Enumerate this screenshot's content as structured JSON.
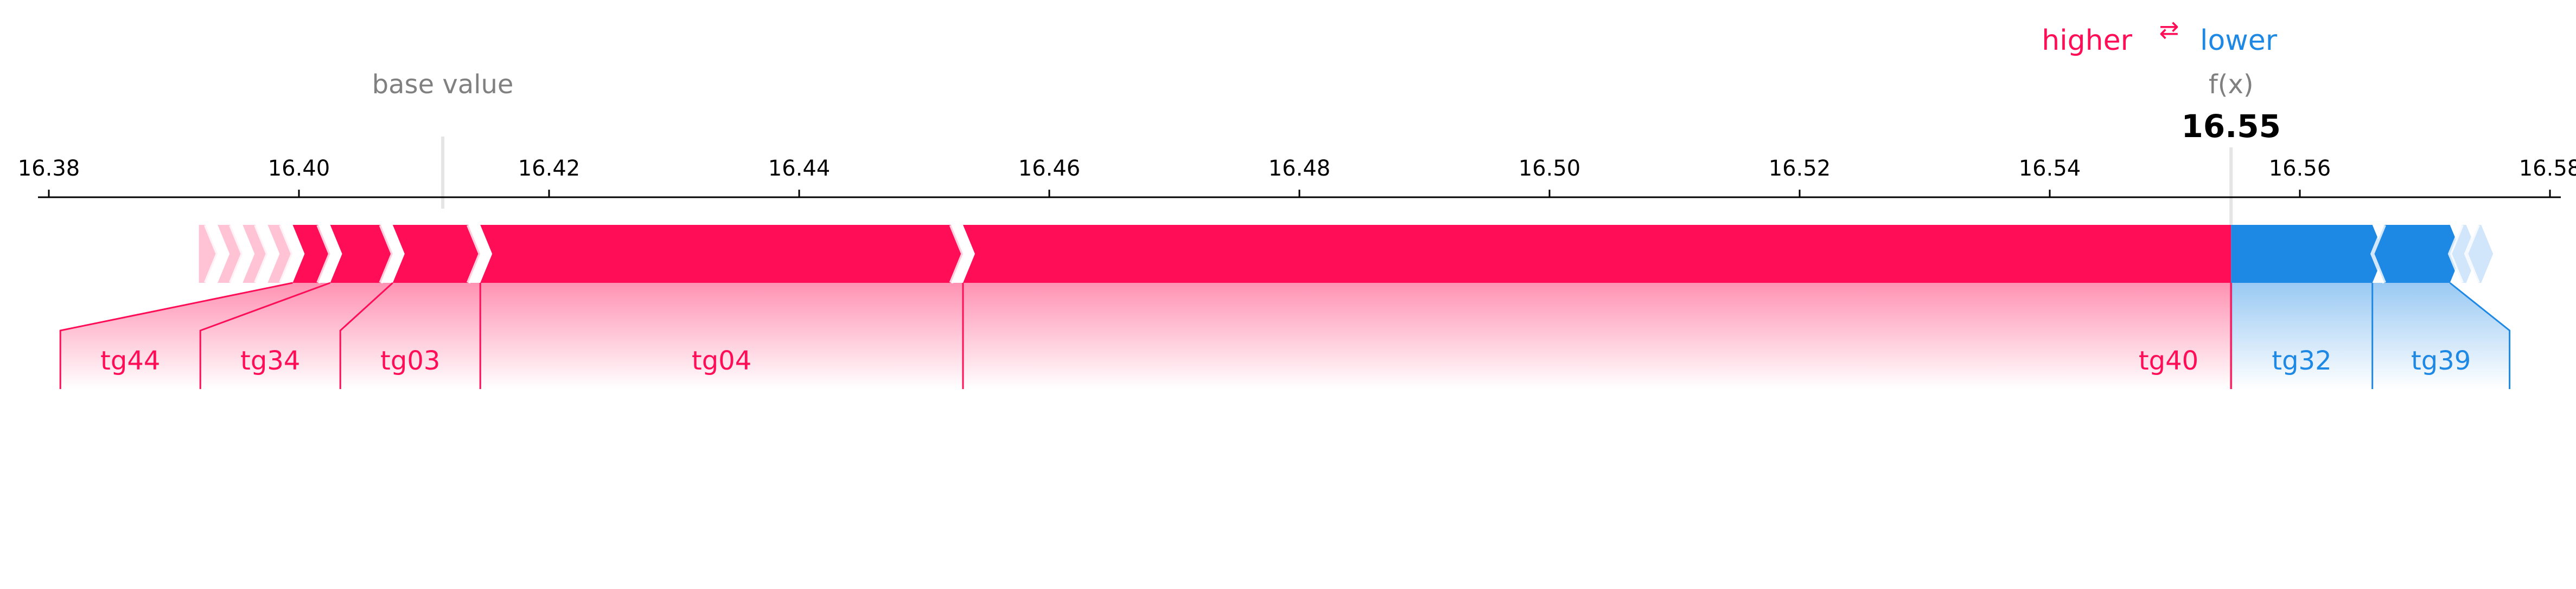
{
  "chart_data": {
    "type": "force",
    "legend": {
      "higher": "higher",
      "lower": "lower",
      "arrow": "⇄"
    },
    "base_value_label": "base value",
    "base_value": 16.4115,
    "output_label": "f(x)",
    "output_value": 16.5545,
    "output_value_text": "16.55",
    "xlim": [
      16.379,
      16.587
    ],
    "ticks": [
      16.38,
      16.4,
      16.42,
      16.44,
      16.46,
      16.48,
      16.5,
      16.52,
      16.54,
      16.56,
      16.58
    ],
    "tick_labels": [
      "16.38",
      "16.40",
      "16.42",
      "16.44",
      "16.46",
      "16.48",
      "16.50",
      "16.52",
      "16.54",
      "16.56",
      "16.58"
    ],
    "colors": {
      "positive": "#ff0d57",
      "negative": "#1e88e5",
      "positive_light": "#ffc3d5",
      "negative_light": "#d1e6fa",
      "axis": "#000000",
      "muted": "#808080"
    },
    "positive_features": [
      {
        "name": "tg40",
        "from": 16.4531,
        "to": 16.5545
      },
      {
        "name": "tg04",
        "from": 16.4145,
        "to": 16.4531
      },
      {
        "name": "tg03",
        "from": 16.4075,
        "to": 16.4145
      },
      {
        "name": "tg34",
        "from": 16.4025,
        "to": 16.4075
      },
      {
        "name": "tg44",
        "from": 16.3995,
        "to": 16.4025
      },
      {
        "name": "",
        "from": 16.3975,
        "to": 16.3995
      },
      {
        "name": "",
        "from": 16.3955,
        "to": 16.3975
      },
      {
        "name": "",
        "from": 16.3935,
        "to": 16.3955
      },
      {
        "name": "",
        "from": 16.392,
        "to": 16.3935
      }
    ],
    "negative_features": [
      {
        "name": "tg32",
        "from": 16.5545,
        "to": 16.5658
      },
      {
        "name": "tg39",
        "from": 16.5658,
        "to": 16.572
      },
      {
        "name": "",
        "from": 16.572,
        "to": 16.5733
      },
      {
        "name": "",
        "from": 16.5733,
        "to": 16.5745
      }
    ]
  }
}
